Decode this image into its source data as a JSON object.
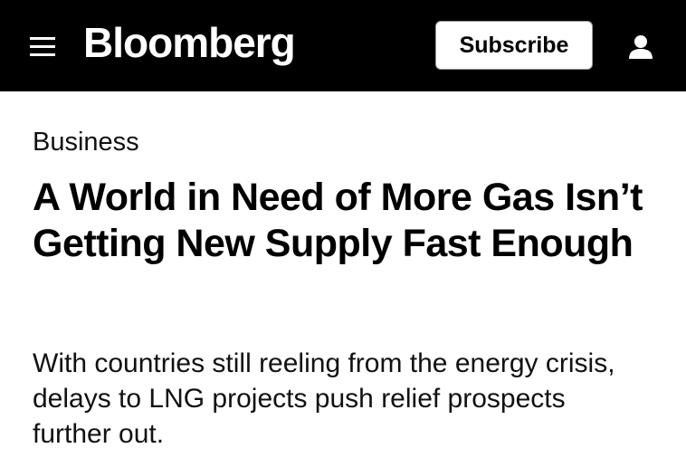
{
  "header": {
    "brand": "Bloomberg",
    "subscribe": "Subscribe"
  },
  "article": {
    "section": "Business",
    "headline": "A World in Need of More Gas Isn’t Getting New Supply Fast Enough",
    "dek": "With countries still reeling from the energy crisis, delays to LNG projects push relief prospects further out."
  }
}
